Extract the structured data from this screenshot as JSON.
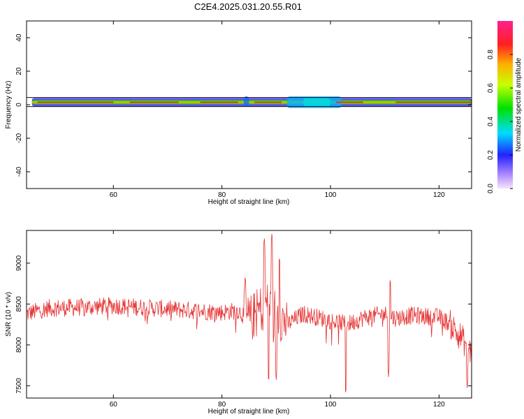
{
  "title": "C2E4.2025.031.20.55.R01",
  "chart_data": [
    {
      "type": "heatmap",
      "xlabel": "Height of straight line (km)",
      "ylabel": "Frequency (Hz)",
      "xlim": [
        44,
        126
      ],
      "ylim": [
        -50,
        50
      ],
      "xticks": [
        60,
        80,
        100,
        120
      ],
      "yticks": [
        -40,
        -20,
        0,
        20,
        40
      ],
      "band_center_hz": 1.5,
      "colorbar": {
        "label": "Normalized spectral amplitude",
        "range": [
          0,
          1
        ],
        "ticks": [
          "0.0",
          "0.2",
          "0.4",
          "0.6",
          "0.8"
        ]
      },
      "bands": [
        {
          "x0": 45,
          "x1": 126,
          "halfwidth_hz": 2.5,
          "level": 0.15
        },
        {
          "x0": 45,
          "x1": 126,
          "halfwidth_hz": 1.2,
          "level": 0.5
        },
        {
          "x0": 45,
          "x1": 126,
          "halfwidth_hz": 0.5,
          "level": 0.75
        }
      ],
      "blobs": [
        {
          "x0": 84,
          "x1": 85,
          "f0": -1,
          "f1": 5,
          "level": 0.25
        },
        {
          "x0": 92,
          "x1": 102,
          "f0": -2,
          "f1": 5,
          "level": 0.3
        },
        {
          "x0": 95,
          "x1": 100,
          "f0": -1,
          "f1": 4,
          "level": 0.35
        }
      ],
      "hot_segments": [
        [
          46,
          60
        ],
        [
          63,
          72
        ],
        [
          76,
          83
        ],
        [
          86,
          91
        ],
        [
          101,
          106
        ],
        [
          112,
          126
        ]
      ]
    },
    {
      "type": "line",
      "xlabel": "Height of straight line (km)",
      "ylabel": "SNR (10 * v/v)",
      "xlim": [
        44,
        126
      ],
      "ylim": [
        7350,
        9400
      ],
      "xticks": [
        60,
        80,
        100,
        120
      ],
      "yticks": [
        7500,
        8000,
        8500,
        9000
      ],
      "color": "#e63232",
      "baseline": [
        [
          44,
          8380
        ],
        [
          48,
          8450
        ],
        [
          55,
          8460
        ],
        [
          60,
          8480
        ],
        [
          65,
          8460
        ],
        [
          70,
          8440
        ],
        [
          75,
          8420
        ],
        [
          80,
          8400
        ],
        [
          83,
          8420
        ],
        [
          85,
          8300
        ],
        [
          88,
          8500
        ],
        [
          90,
          8400
        ],
        [
          92,
          8250
        ],
        [
          95,
          8380
        ],
        [
          100,
          8300
        ],
        [
          103,
          8250
        ],
        [
          106,
          8330
        ],
        [
          110,
          8380
        ],
        [
          112,
          8330
        ],
        [
          115,
          8360
        ],
        [
          120,
          8340
        ],
        [
          122,
          8260
        ],
        [
          124,
          8100
        ],
        [
          126,
          7900
        ]
      ],
      "spikes_up": [
        [
          87.8,
          9330
        ],
        [
          89.2,
          9370
        ],
        [
          90.6,
          9100
        ],
        [
          84.3,
          8860
        ],
        [
          111.0,
          8830
        ]
      ],
      "spikes_down": [
        [
          88.6,
          7530
        ],
        [
          90.0,
          7560
        ],
        [
          102.8,
          7380
        ],
        [
          110.7,
          7600
        ],
        [
          125.2,
          7450
        ]
      ]
    }
  ]
}
